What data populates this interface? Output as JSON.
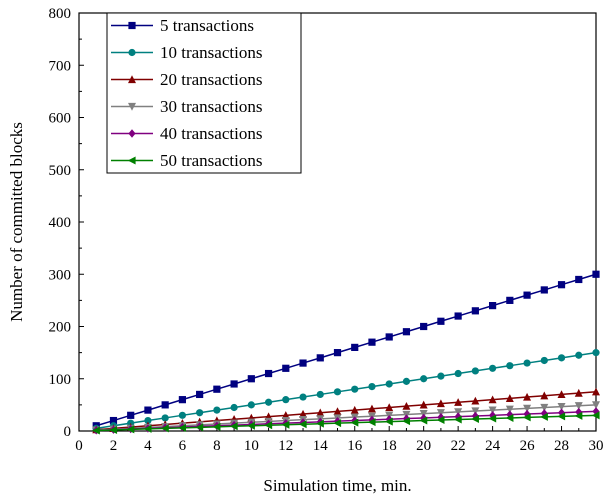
{
  "chart_data": {
    "type": "line",
    "title": "",
    "xlabel": "Simulation time, min.",
    "ylabel": "Number of committed blocks",
    "xlim": [
      0,
      30
    ],
    "ylim": [
      0,
      800
    ],
    "xticks": [
      0,
      2,
      4,
      6,
      8,
      10,
      12,
      14,
      16,
      18,
      20,
      22,
      24,
      26,
      28,
      30
    ],
    "yticks": [
      0,
      100,
      200,
      300,
      400,
      500,
      600,
      700,
      800
    ],
    "grid": false,
    "legend_position": "top-left",
    "x": [
      1,
      2,
      3,
      4,
      5,
      6,
      7,
      8,
      9,
      10,
      11,
      12,
      13,
      14,
      15,
      16,
      17,
      18,
      19,
      20,
      21,
      22,
      23,
      24,
      25,
      26,
      27,
      28,
      29,
      30
    ],
    "series": [
      {
        "name": "5 transactions",
        "color": "#000080",
        "marker": "square",
        "values": [
          10,
          20,
          30,
          40,
          50,
          60,
          70,
          80,
          90,
          100,
          110,
          120,
          130,
          140,
          150,
          160,
          170,
          180,
          190,
          200,
          210,
          220,
          230,
          240,
          250,
          260,
          270,
          280,
          290,
          300
        ]
      },
      {
        "name": "10 transactions",
        "color": "#008080",
        "marker": "circle",
        "values": [
          5,
          10,
          15,
          20,
          25,
          30,
          35,
          40,
          45,
          50,
          55,
          60,
          65,
          70,
          75,
          80,
          85,
          90,
          95,
          100,
          105,
          110,
          115,
          120,
          125,
          130,
          135,
          140,
          145,
          150
        ]
      },
      {
        "name": "20 transactions",
        "color": "#800000",
        "marker": "triangle-up",
        "values": [
          2.5,
          5,
          7.5,
          10,
          12.5,
          15,
          17.5,
          20,
          22.5,
          25,
          27.5,
          30,
          32.5,
          35,
          37.5,
          40,
          42.5,
          45,
          47.5,
          50,
          52.5,
          55,
          57.5,
          60,
          62.5,
          65,
          67.5,
          70,
          72.5,
          75
        ]
      },
      {
        "name": "30 transactions",
        "color": "#808080",
        "marker": "triangle-down",
        "values": [
          1.7,
          3.3,
          5,
          6.7,
          8.3,
          10,
          11.7,
          13.3,
          15,
          16.7,
          18.3,
          20,
          21.7,
          23.3,
          25,
          26.7,
          28.3,
          30,
          31.7,
          33.3,
          35,
          36.7,
          38.3,
          40,
          41.7,
          43.3,
          45,
          46.7,
          48.3,
          50
        ]
      },
      {
        "name": "40 transactions",
        "color": "#800080",
        "marker": "diamond",
        "values": [
          1.3,
          2.5,
          3.8,
          5,
          6.3,
          7.5,
          8.8,
          10,
          11.3,
          12.5,
          13.8,
          15,
          16.3,
          17.5,
          18.8,
          20,
          21.3,
          22.5,
          23.8,
          25,
          26.3,
          27.5,
          28.8,
          30,
          31.3,
          32.5,
          33.8,
          35,
          36.3,
          37.5
        ]
      },
      {
        "name": "50 transactions",
        "color": "#008000",
        "marker": "triangle-left",
        "values": [
          1,
          2,
          3,
          4,
          5,
          6,
          7,
          8,
          9,
          10,
          11,
          12,
          13,
          14,
          15,
          16,
          17,
          18,
          19,
          20,
          21,
          22,
          23,
          24,
          25,
          26,
          27,
          28,
          29,
          30
        ]
      }
    ]
  }
}
